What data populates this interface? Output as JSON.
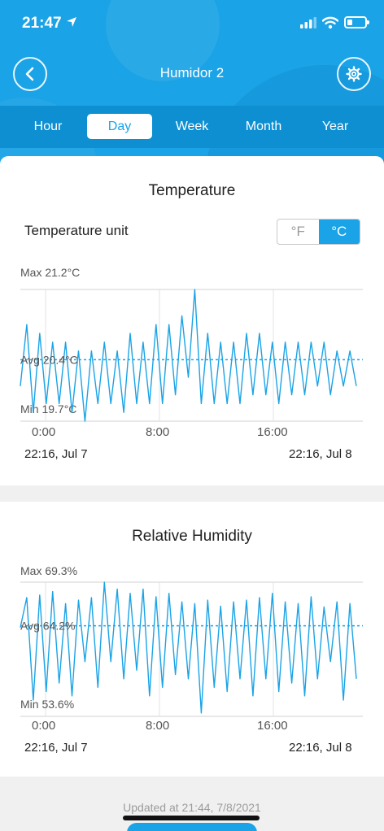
{
  "status_bar": {
    "time": "21:47"
  },
  "nav": {
    "title": "Humidor 2"
  },
  "tabs": [
    {
      "label": "Hour"
    },
    {
      "label": "Day"
    },
    {
      "label": "Week"
    },
    {
      "label": "Month"
    },
    {
      "label": "Year"
    }
  ],
  "temperature": {
    "title": "Temperature",
    "unit_label": "Temperature unit",
    "unit_options": [
      "°F",
      "°C"
    ],
    "selected_unit": "°C",
    "max_label": "Max 21.2°C",
    "avg_label": "Avg 20.4°C",
    "min_label": "Min 19.7°C",
    "start_date": "22:16,  Jul 7",
    "end_date": "22:16,  Jul 8"
  },
  "humidity": {
    "title": "Relative Humidity",
    "max_label": "Max 69.3%",
    "avg_label": "Avg 64.2%",
    "min_label": "Min 53.6%",
    "start_date": "22:16,  Jul 7",
    "end_date": "22:16,  Jul 8"
  },
  "chart_data": [
    {
      "type": "line",
      "title": "Temperature",
      "series": [
        {
          "values": [
            20.1,
            20.8,
            19.8,
            20.7,
            19.9,
            20.6,
            19.9,
            20.6,
            19.8,
            20.5,
            19.7,
            20.5,
            19.9,
            20.6,
            19.9,
            20.5,
            19.8,
            20.7,
            19.9,
            20.6,
            19.9,
            20.8,
            19.9,
            20.8,
            20.0,
            20.9,
            20.2,
            21.2,
            19.9,
            20.7,
            19.9,
            20.6,
            19.9,
            20.6,
            19.9,
            20.7,
            20.0,
            20.7,
            20.0,
            20.6,
            19.9,
            20.6,
            20.0,
            20.6,
            20.0,
            20.6,
            20.1,
            20.6,
            20.0,
            20.5,
            20.1,
            20.5,
            20.1
          ]
        }
      ],
      "x_ticks": [
        "0:00",
        "8:00",
        "16:00"
      ],
      "ylim": [
        19.7,
        21.2
      ],
      "avg": 20.4,
      "colors": {
        "line": "#1aa3e6",
        "avg": "#1aa3e6"
      },
      "grid": "on"
    },
    {
      "type": "line",
      "title": "Relative Humidity",
      "series": [
        {
          "values": [
            64.0,
            67.5,
            55.5,
            67.8,
            56.5,
            68.2,
            57.5,
            66.8,
            56.0,
            67.2,
            60.0,
            67.5,
            57.0,
            69.3,
            60.0,
            68.5,
            58.0,
            68.0,
            59.0,
            68.5,
            56.0,
            67.6,
            57.0,
            68.0,
            58.5,
            67.0,
            58.0,
            66.8,
            54.0,
            67.2,
            57.0,
            66.5,
            56.5,
            67.0,
            58.0,
            67.2,
            56.0,
            67.5,
            58.0,
            68.0,
            56.5,
            67.0,
            57.5,
            66.8,
            56.0,
            67.6,
            58.0,
            66.4,
            60.0,
            67.0,
            55.5,
            66.8,
            58.0
          ]
        }
      ],
      "x_ticks": [
        "0:00",
        "8:00",
        "16:00"
      ],
      "ylim": [
        53.6,
        69.3
      ],
      "avg": 64.2,
      "colors": {
        "line": "#1aa3e6",
        "avg": "#1aa3e6"
      },
      "grid": "on"
    }
  ],
  "footer": {
    "updated": "Updated at 21:44,  7/8/2021"
  },
  "colors": {
    "brand": "#1aa3e6",
    "tabbar": "#0d8fd2"
  }
}
